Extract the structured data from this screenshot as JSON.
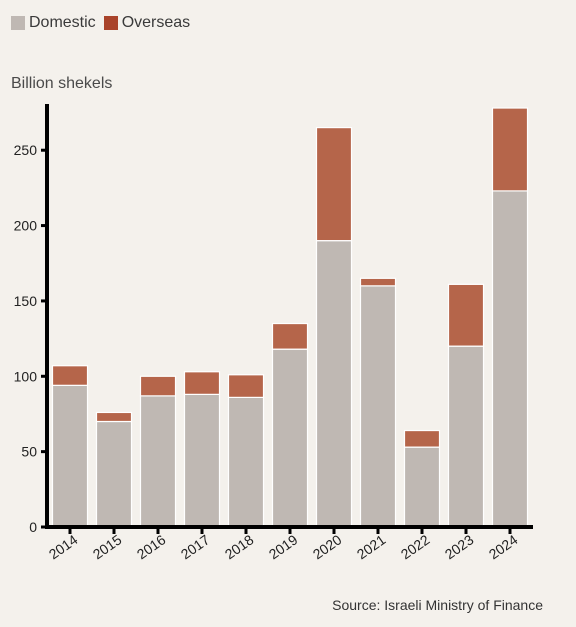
{
  "chart_data": {
    "type": "bar",
    "stacked": true,
    "ylabel": "Billion shekels",
    "categories": [
      "2014",
      "2015",
      "2016",
      "2017",
      "2018",
      "2019",
      "2020",
      "2021",
      "2022",
      "2023",
      "2024"
    ],
    "series": [
      {
        "name": "Domestic",
        "color": "#bfb8b3",
        "values": [
          94,
          70,
          87,
          88,
          86,
          118,
          190,
          160,
          53,
          120,
          223
        ]
      },
      {
        "name": "Overseas",
        "color": "#b5654a",
        "values": [
          13,
          6,
          13,
          15,
          15,
          17,
          75,
          5,
          11,
          41,
          55
        ]
      }
    ],
    "ylim": [
      0,
      280
    ],
    "yticks": [
      0,
      50,
      100,
      150,
      200,
      250
    ],
    "source": "Source: Israeli Ministry of Finance",
    "legend": "top-left"
  },
  "legend_swatch_colors": [
    "#bfb8b3",
    "#a9432a"
  ]
}
